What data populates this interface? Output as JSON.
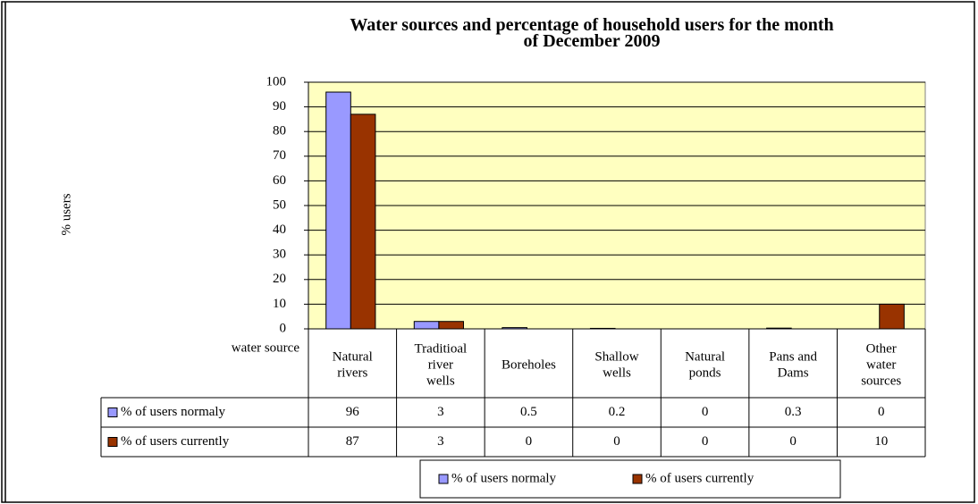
{
  "chart_data": {
    "type": "bar",
    "title": "Water sources and percentage of household users for the month of December 2009",
    "y_label": "% users",
    "x_label": "water source",
    "categories": [
      "Natural rivers",
      "Traditioal river wells",
      "Boreholes",
      "Shallow wells",
      "Natural ponds",
      "Pans and Dams",
      "Other water sources"
    ],
    "series": [
      {
        "name": "% of users normaly",
        "color": "#9999ff",
        "values": [
          96,
          3,
          0.5,
          0.2,
          0,
          0.3,
          0
        ]
      },
      {
        "name": "% of users currently",
        "color": "#993300",
        "values": [
          87,
          3,
          0,
          0,
          0,
          0,
          10
        ]
      }
    ],
    "ylim": [
      0,
      100
    ],
    "yticks": [
      0,
      10,
      20,
      30,
      40,
      50,
      60,
      70,
      80,
      90,
      100
    ],
    "grid": true,
    "plot_background": "#ffffc0"
  }
}
